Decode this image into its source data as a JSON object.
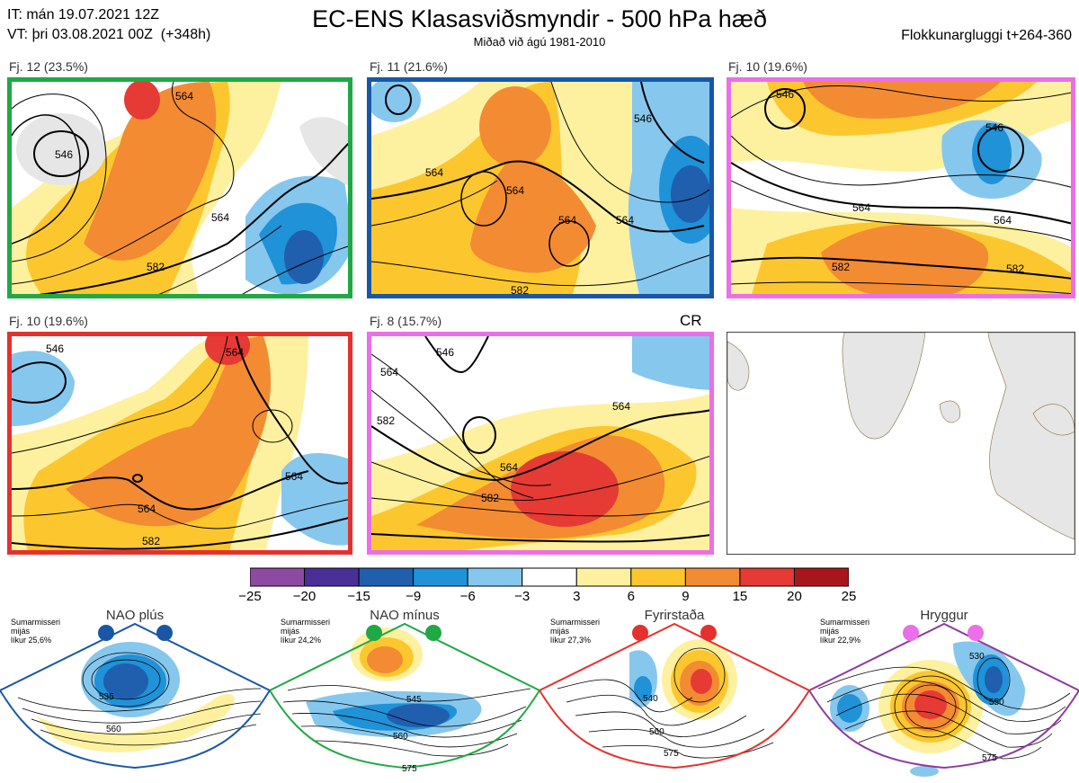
{
  "header": {
    "it_line": "IT: mán 19.07.2021 12Z",
    "vt_line": "VT: þri 03.08.2021 00Z  (+348h)",
    "title": "EC-ENS Klasasviðsmyndir - 500 hPa hæð",
    "subtitle": "Miðað við ágú 1981-2010",
    "window": "Flokkunargluggi t+264-360"
  },
  "panels": [
    {
      "label": "Fj. 12 (23.5%)",
      "border": "#1fa844",
      "contours": [
        "546",
        "564",
        "564",
        "582"
      ]
    },
    {
      "label": "Fj. 11 (21.6%)",
      "border": "#1957a6",
      "contours": [
        "564",
        "564",
        "564",
        "582",
        "546",
        "564"
      ]
    },
    {
      "label": "Fj. 10 (19.6%)",
      "border": "#ea6fe8",
      "contours": [
        "546",
        "546",
        "564",
        "564",
        "582",
        "582"
      ]
    },
    {
      "label": "Fj. 10 (19.6%)",
      "border": "#e5312d",
      "contours": [
        "546",
        "564",
        "564",
        "564",
        "582"
      ]
    },
    {
      "label": "Fj. 8 (15.7%)",
      "border": "#ea6fe8",
      "contours": [
        "546",
        "564",
        "582",
        "564",
        "582",
        "564"
      ]
    }
  ],
  "cr_label": "CR",
  "colorbar": {
    "ticks": [
      "−25",
      "−20",
      "−15",
      "−9",
      "−6",
      "−3",
      "3",
      "6",
      "9",
      "15",
      "20",
      "25"
    ],
    "colors": [
      "#8e4aa2",
      "#4b2f98",
      "#1f5fae",
      "#1f92d8",
      "#86c7ee",
      "#ffffff",
      "#fdf1a0",
      "#fcc72e",
      "#f38b33",
      "#e63a34",
      "#a8161c"
    ]
  },
  "regimes": [
    {
      "name": "NAO plús",
      "text": [
        "Sumarmisseri",
        "mijás",
        "líkur 25,6%"
      ],
      "dot_color": "#1957a6",
      "edge": "#1957a6",
      "contours": [
        "535",
        "560"
      ]
    },
    {
      "name": "NAO mínus",
      "text": [
        "Sumarmisseri",
        "mijás",
        "líkur 24,2%"
      ],
      "dot_color": "#1fa844",
      "edge": "#1fa844",
      "contours": [
        "545",
        "560",
        "575"
      ]
    },
    {
      "name": "Fyrirstaða",
      "text": [
        "Sumarmisseri",
        "mijás",
        "líkur 27,3%"
      ],
      "dot_color": "#e5312d",
      "edge": "#e5312d",
      "contours": [
        "540",
        "560",
        "575"
      ]
    },
    {
      "name": "Hryggur",
      "text": [
        "Sumarmisseri",
        "mijás",
        "líkur 22,9%"
      ],
      "dot_color": "#ea6fe8",
      "edge": "#8e3aa0",
      "contours": [
        "530",
        "550",
        "575"
      ]
    }
  ]
}
